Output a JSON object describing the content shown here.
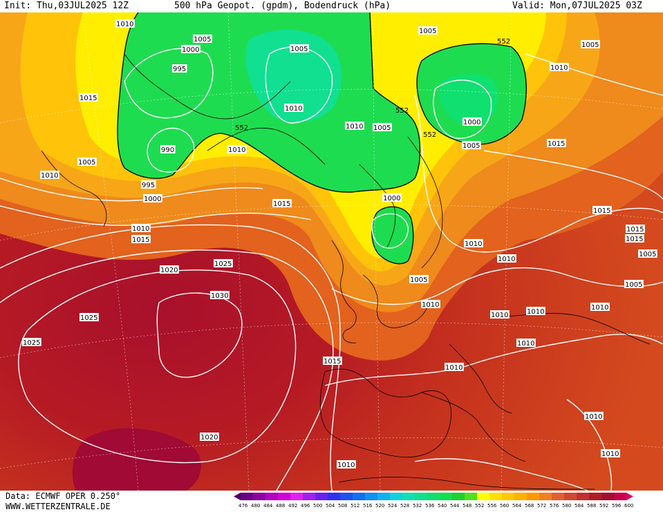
{
  "header": {
    "init": "Init: Thu,03JUL2025 12Z",
    "title": "500 hPa Geopot. (gpdm), Bodendruck (hPa)",
    "valid": "Valid: Mon,07JUL2025 03Z"
  },
  "footer": {
    "data_source": "Data: ECMWF OPER 0.250°",
    "website": "WWW.WETTERZENTRALE.DE"
  },
  "colorbar": {
    "ticks": [
      "476",
      "480",
      "484",
      "488",
      "492",
      "496",
      "500",
      "504",
      "508",
      "512",
      "516",
      "520",
      "524",
      "528",
      "532",
      "536",
      "540",
      "544",
      "548",
      "552",
      "556",
      "560",
      "564",
      "568",
      "572",
      "576",
      "580",
      "584",
      "588",
      "592",
      "596",
      "600"
    ],
    "colors": [
      "#4b0063",
      "#6a0080",
      "#8c00a0",
      "#b000c0",
      "#d000d8",
      "#e020f0",
      "#a020f0",
      "#6a20f0",
      "#3030f0",
      "#2050f0",
      "#1070f0",
      "#1090f0",
      "#10b0f0",
      "#10d0e0",
      "#10e0b0",
      "#10e090",
      "#10e070",
      "#10e050",
      "#20d030",
      "#50e020",
      "#ffff00",
      "#ffe000",
      "#ffc800",
      "#ffb000",
      "#ff9800",
      "#f08020",
      "#e06030",
      "#d04830",
      "#c03030",
      "#b01c28",
      "#a01030",
      "#c8004a",
      "#e0006a"
    ]
  },
  "map": {
    "contour_552_label": "552",
    "pressure_labels": [
      "1010",
      "1005",
      "1000",
      "995",
      "990",
      "1005",
      "1010",
      "1015",
      "1005",
      "1010",
      "1015",
      "1020",
      "1025",
      "1030",
      "1025",
      "1025",
      "1020",
      "1015",
      "1010",
      "1005",
      "1000",
      "1005",
      "1010",
      "1015",
      "1010",
      "1005",
      "1000",
      "1005",
      "1010",
      "1015",
      "1005",
      "1010",
      "1010",
      "1010",
      "1015",
      "1010",
      "1010",
      "1010",
      "1010",
      "1005",
      "1010",
      "1015",
      "1010",
      "1015",
      "1010",
      "995",
      "1000",
      "1010",
      "1005"
    ]
  }
}
